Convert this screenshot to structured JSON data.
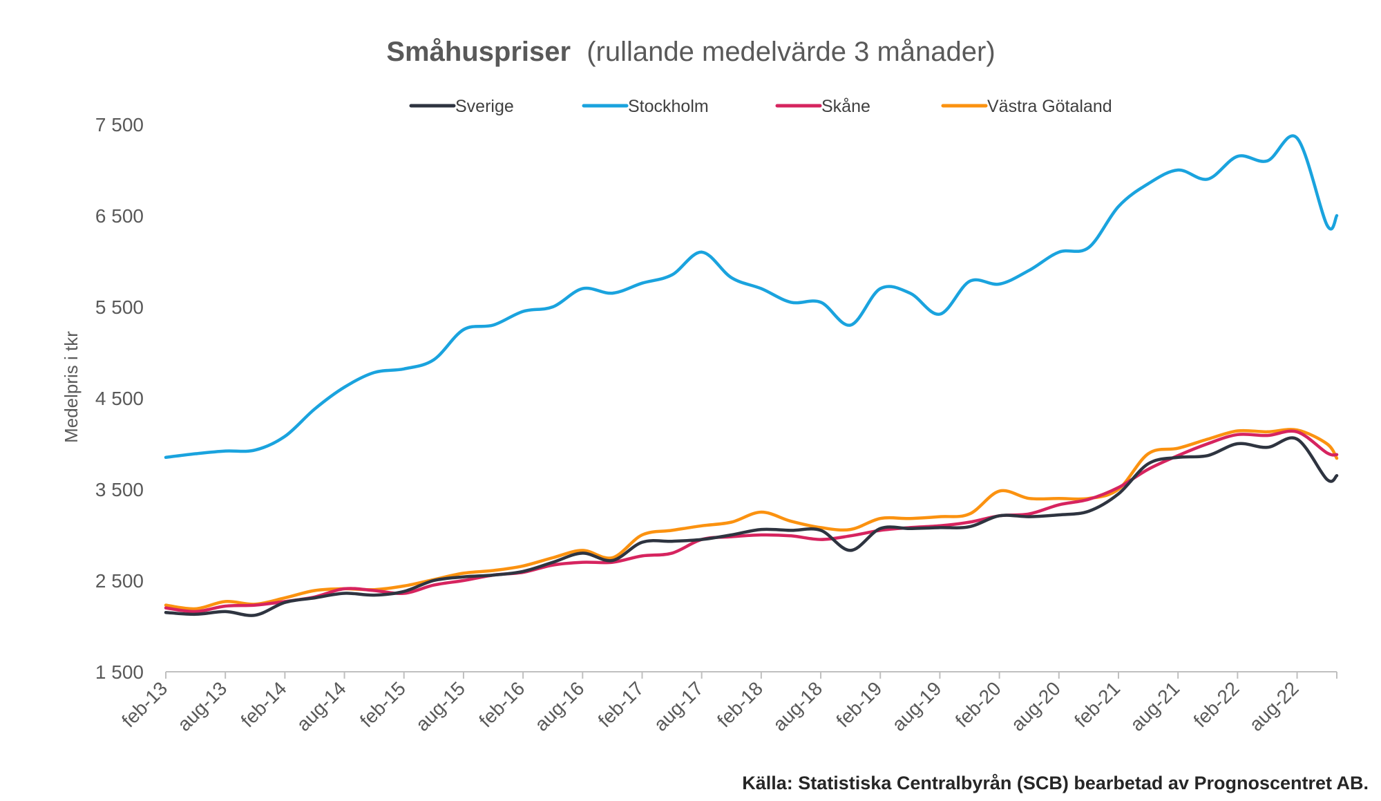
{
  "chart_data": {
    "type": "line",
    "title_bold": "Småhuspriser",
    "title_rest": "(rullande medelvärde 3 månader)",
    "ylabel": "Medelpris i tkr",
    "xlabel": "",
    "ylim": [
      1500,
      7500
    ],
    "yticks": [
      1500,
      2500,
      3500,
      4500,
      5500,
      6500,
      7500
    ],
    "ytick_labels": [
      "1 500",
      "2 500",
      "3 500",
      "4 500",
      "5 500",
      "6 500",
      "7 500"
    ],
    "xticks": [
      "feb-13",
      "aug-13",
      "feb-14",
      "aug-14",
      "feb-15",
      "aug-15",
      "feb-16",
      "aug-16",
      "feb-17",
      "aug-17",
      "feb-18",
      "aug-18",
      "feb-19",
      "aug-19",
      "feb-20",
      "aug-20",
      "feb-21",
      "aug-21",
      "feb-22",
      "aug-22"
    ],
    "x_start": "feb-13",
    "x_end": "dec-22",
    "legend_position": "top",
    "grid": false,
    "series": [
      {
        "name": "Sverige",
        "color": "#2e3440",
        "x": [
          "2013-02",
          "2013-05",
          "2013-08",
          "2013-11",
          "2014-02",
          "2014-05",
          "2014-08",
          "2014-11",
          "2015-02",
          "2015-05",
          "2015-08",
          "2015-11",
          "2016-02",
          "2016-05",
          "2016-08",
          "2016-11",
          "2017-02",
          "2017-05",
          "2017-08",
          "2017-11",
          "2018-02",
          "2018-05",
          "2018-08",
          "2018-11",
          "2019-02",
          "2019-05",
          "2019-08",
          "2019-11",
          "2020-02",
          "2020-05",
          "2020-08",
          "2020-11",
          "2021-02",
          "2021-05",
          "2021-08",
          "2021-11",
          "2022-02",
          "2022-05",
          "2022-08",
          "2022-11",
          "2022-12"
        ],
        "values": [
          2150,
          2130,
          2160,
          2120,
          2260,
          2310,
          2360,
          2340,
          2380,
          2500,
          2540,
          2560,
          2600,
          2700,
          2800,
          2720,
          2920,
          2930,
          2950,
          3000,
          3060,
          3050,
          3050,
          2830,
          3070,
          3070,
          3080,
          3090,
          3210,
          3200,
          3220,
          3260,
          3450,
          3780,
          3850,
          3870,
          4000,
          3960,
          4050,
          3610,
          3650
        ]
      },
      {
        "name": "Stockholm",
        "color": "#1aa3de",
        "x": [
          "2013-02",
          "2013-05",
          "2013-08",
          "2013-11",
          "2014-02",
          "2014-05",
          "2014-08",
          "2014-11",
          "2015-02",
          "2015-05",
          "2015-08",
          "2015-11",
          "2016-02",
          "2016-05",
          "2016-08",
          "2016-11",
          "2017-02",
          "2017-05",
          "2017-08",
          "2017-11",
          "2018-02",
          "2018-05",
          "2018-08",
          "2018-11",
          "2019-02",
          "2019-05",
          "2019-08",
          "2019-11",
          "2020-02",
          "2020-05",
          "2020-08",
          "2020-11",
          "2021-02",
          "2021-05",
          "2021-08",
          "2021-11",
          "2022-02",
          "2022-05",
          "2022-08",
          "2022-11",
          "2022-12"
        ],
        "values": [
          3850,
          3890,
          3920,
          3930,
          4080,
          4380,
          4620,
          4780,
          4820,
          4920,
          5250,
          5300,
          5450,
          5500,
          5700,
          5650,
          5760,
          5850,
          6100,
          5820,
          5700,
          5550,
          5550,
          5300,
          5700,
          5650,
          5420,
          5780,
          5750,
          5900,
          6100,
          6150,
          6600,
          6850,
          7000,
          6900,
          7150,
          7100,
          7350,
          6400,
          6500
        ]
      },
      {
        "name": "Skåne",
        "color": "#d6245f",
        "x": [
          "2013-02",
          "2013-05",
          "2013-08",
          "2013-11",
          "2014-02",
          "2014-05",
          "2014-08",
          "2014-11",
          "2015-02",
          "2015-05",
          "2015-08",
          "2015-11",
          "2016-02",
          "2016-05",
          "2016-08",
          "2016-11",
          "2017-02",
          "2017-05",
          "2017-08",
          "2017-11",
          "2018-02",
          "2018-05",
          "2018-08",
          "2018-11",
          "2019-02",
          "2019-05",
          "2019-08",
          "2019-11",
          "2020-02",
          "2020-05",
          "2020-08",
          "2020-11",
          "2021-02",
          "2021-05",
          "2021-08",
          "2021-11",
          "2022-02",
          "2022-05",
          "2022-08",
          "2022-11",
          "2022-12"
        ],
        "values": [
          2200,
          2160,
          2220,
          2230,
          2270,
          2320,
          2410,
          2390,
          2360,
          2450,
          2500,
          2560,
          2590,
          2670,
          2700,
          2700,
          2770,
          2800,
          2950,
          2980,
          3000,
          2990,
          2950,
          2990,
          3050,
          3080,
          3100,
          3140,
          3210,
          3230,
          3330,
          3390,
          3520,
          3720,
          3870,
          4000,
          4100,
          4090,
          4130,
          3900,
          3880
        ]
      },
      {
        "name": "Västra Götaland",
        "color": "#fb9210",
        "x": [
          "2013-02",
          "2013-05",
          "2013-08",
          "2013-11",
          "2014-02",
          "2014-05",
          "2014-08",
          "2014-11",
          "2015-02",
          "2015-05",
          "2015-08",
          "2015-11",
          "2016-02",
          "2016-05",
          "2016-08",
          "2016-11",
          "2017-02",
          "2017-05",
          "2017-08",
          "2017-11",
          "2018-02",
          "2018-05",
          "2018-08",
          "2018-11",
          "2019-02",
          "2019-05",
          "2019-08",
          "2019-11",
          "2020-02",
          "2020-05",
          "2020-08",
          "2020-11",
          "2021-02",
          "2021-05",
          "2021-08",
          "2021-11",
          "2022-02",
          "2022-05",
          "2022-08",
          "2022-11",
          "2022-12"
        ],
        "values": [
          2230,
          2190,
          2270,
          2240,
          2310,
          2390,
          2410,
          2400,
          2440,
          2510,
          2580,
          2610,
          2660,
          2750,
          2830,
          2750,
          3000,
          3050,
          3100,
          3140,
          3250,
          3150,
          3080,
          3060,
          3180,
          3180,
          3200,
          3230,
          3480,
          3400,
          3400,
          3400,
          3500,
          3890,
          3950,
          4050,
          4140,
          4130,
          4150,
          4000,
          3840
        ]
      }
    ]
  },
  "source_text": "Källa: Statistiska Centralbyrån (SCB) bearbetad av Prognoscentret AB."
}
